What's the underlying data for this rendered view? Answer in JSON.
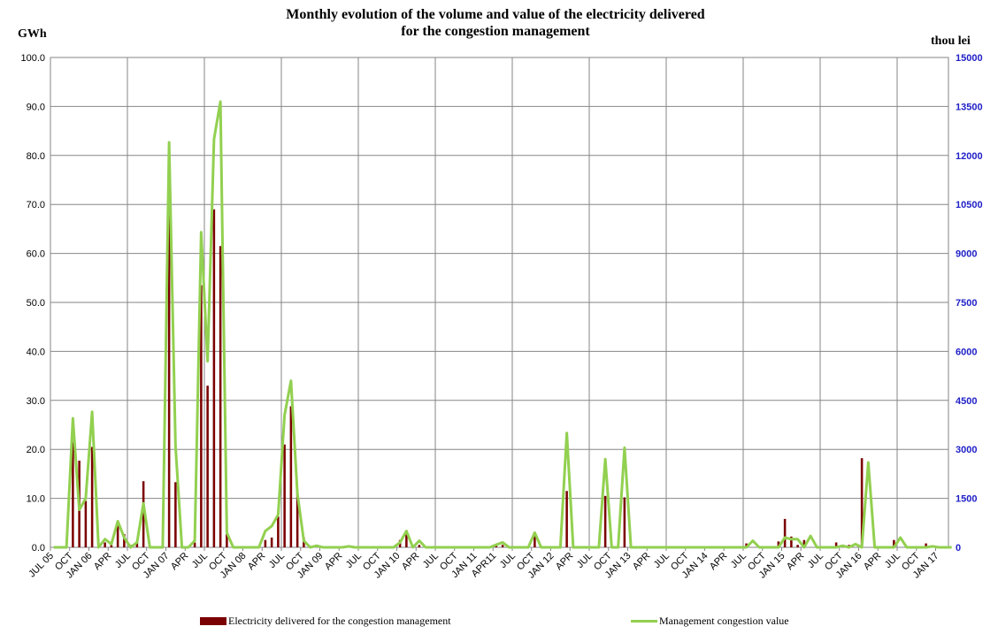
{
  "chart_data": {
    "type": "bar",
    "title": "Monthly evolution of the volume and value of the electricity delivered",
    "title_line2": "for the congestion management",
    "ylabel_left": "GWh",
    "ylabel_right": "thou lei",
    "ylim_left": [
      0,
      100
    ],
    "ylim_right": [
      0,
      15000
    ],
    "left_ticks": [
      "0.0",
      "10.0",
      "20.0",
      "30.0",
      "40.0",
      "50.0",
      "60.0",
      "70.0",
      "80.0",
      "90.0",
      "100.0"
    ],
    "right_ticks": [
      "0",
      "1500",
      "3000",
      "4500",
      "6000",
      "7500",
      "9000",
      "10500",
      "12000",
      "13500",
      "15000"
    ],
    "x_labels": [
      "JUL 05",
      "OCT",
      "JAN 06",
      "APR",
      "JUL",
      "OCT",
      "JAN 07",
      "APR",
      "JUL",
      "OCT",
      "JAN 08",
      "APR",
      "JUL",
      "OCT",
      "JAN 09",
      "APR",
      "JUL",
      "OCT",
      "JAN 10",
      "APR",
      "JUL",
      "OCT",
      "JAN 11",
      "APR11",
      "JUL",
      "OCT",
      "JAN 12",
      "APR",
      "JUL",
      "OCT",
      "JAN 13",
      "APR",
      "JUL",
      "OCT",
      "JAN 14",
      "APR",
      "JUL",
      "OCT",
      "JAN 15",
      "APR",
      "JUL",
      "OCT",
      "JAN 16",
      "APR",
      "JUL",
      "OCT",
      "JAN 17"
    ],
    "grid": true,
    "legend_position": "bottom",
    "series": [
      {
        "name": "Electricity delivered for the congestion management",
        "type": "bar",
        "axis": "left",
        "color": "#7b0000",
        "values": [
          0,
          0,
          0,
          21.5,
          17.7,
          9.5,
          20.5,
          0,
          1.0,
          0.5,
          4.8,
          2.7,
          0.5,
          1.2,
          13.5,
          0,
          0,
          0,
          68,
          13.3,
          0,
          0,
          1.0,
          53.5,
          33,
          69,
          61.5,
          2.7,
          0,
          0,
          0,
          0,
          0,
          1.5,
          2.0,
          6.3,
          21,
          28.8,
          11.2,
          2.0,
          0,
          0,
          0,
          0,
          0,
          0,
          0,
          0,
          0,
          0,
          0,
          0,
          0,
          0,
          1.5,
          3.5,
          0,
          0.5,
          0,
          0,
          0,
          0,
          0,
          0,
          0,
          0,
          0,
          0,
          0,
          0.3,
          0.5,
          0,
          0,
          0,
          0,
          2.5,
          0,
          0,
          0,
          0,
          11.5,
          0,
          0,
          0,
          0,
          0,
          10.5,
          0,
          0,
          10.2,
          0,
          0,
          0,
          0,
          0,
          0,
          0,
          0,
          0,
          0,
          0,
          0,
          0,
          0,
          0,
          0,
          0,
          0,
          0.8,
          0,
          0,
          0,
          0,
          1.2,
          5.8,
          2.2,
          0.5,
          1.5,
          0,
          0,
          0,
          0,
          1.0,
          0,
          0.5,
          0,
          18.2,
          0,
          0,
          0,
          0,
          1.5,
          0,
          0,
          0,
          0,
          0.8,
          0,
          0,
          0
        ]
      },
      {
        "name": "Management congestion value",
        "type": "line",
        "axis": "right",
        "color": "#92d050",
        "values": [
          0,
          0,
          0,
          3950,
          1150,
          1500,
          4150,
          0,
          250,
          100,
          800,
          300,
          0,
          150,
          1350,
          0,
          0,
          0,
          12400,
          3100,
          0,
          0,
          200,
          9650,
          5700,
          12500,
          13650,
          450,
          0,
          0,
          0,
          0,
          0,
          500,
          650,
          1000,
          4050,
          5100,
          1650,
          200,
          0,
          50,
          0,
          0,
          0,
          0,
          30,
          0,
          0,
          0,
          0,
          0,
          0,
          0,
          150,
          500,
          0,
          200,
          0,
          0,
          0,
          0,
          0,
          0,
          0,
          0,
          0,
          0,
          0,
          80,
          150,
          0,
          0,
          0,
          0,
          450,
          0,
          0,
          0,
          0,
          3500,
          0,
          0,
          0,
          0,
          0,
          2700,
          0,
          0,
          3050,
          0,
          0,
          0,
          0,
          0,
          0,
          0,
          0,
          0,
          0,
          0,
          0,
          0,
          0,
          0,
          0,
          0,
          0,
          0,
          200,
          0,
          0,
          0,
          0,
          300,
          250,
          250,
          0,
          350,
          0,
          0,
          0,
          0,
          50,
          0,
          100,
          0,
          2600,
          0,
          0,
          0,
          0,
          300,
          0,
          0,
          0,
          0,
          30,
          0,
          0,
          0
        ]
      }
    ]
  }
}
